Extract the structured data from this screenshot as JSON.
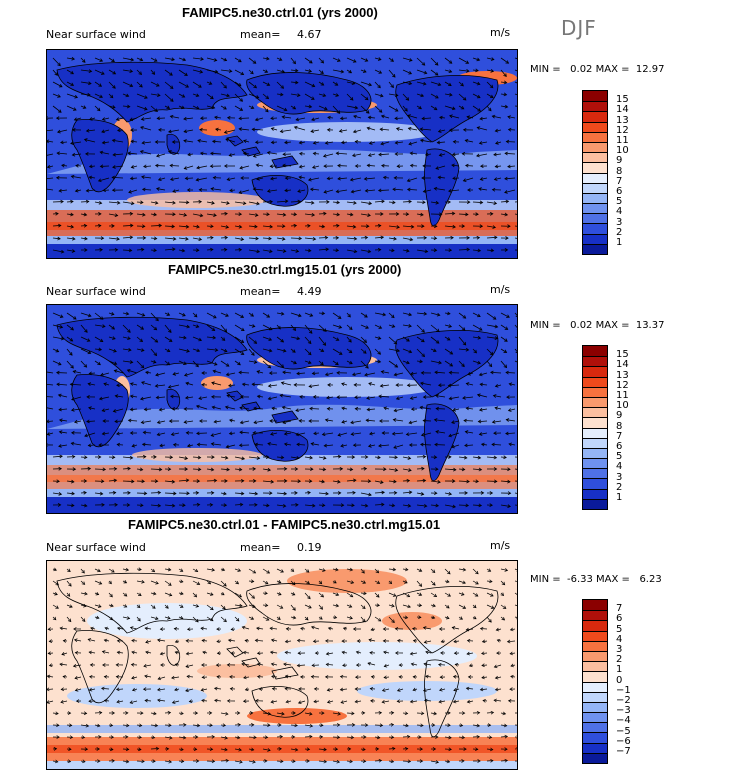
{
  "season": "DJF",
  "panels": [
    {
      "title": "FAMIPC5.ne30.ctrl.01 (yrs 2000)",
      "var_label": "Near surface wind",
      "mean_label": "mean=",
      "mean_value": "4.67",
      "units": "m/s",
      "minmax": "MIN =   0.02 MAX =  12.97",
      "colorbar": {
        "labels": [
          "15",
          "14",
          "13",
          "12",
          "11",
          "10",
          "9",
          "8",
          "7",
          "6",
          "5",
          "4",
          "3",
          "2",
          "1"
        ],
        "colors": [
          "#8b0000",
          "#b0100a",
          "#d8290e",
          "#ef4a1c",
          "#f7723f",
          "#f99a6e",
          "#fbbfa0",
          "#fde1cf",
          "#e4eefd",
          "#c0d6fb",
          "#94b5f6",
          "#6f92ef",
          "#4f71e6",
          "#2f4fdc",
          "#1730c6",
          "#0a1a9a"
        ]
      }
    },
    {
      "title": "FAMIPC5.ne30.ctrl.mg15.01 (yrs 2000)",
      "var_label": "Near surface wind",
      "mean_label": "mean=",
      "mean_value": "4.49",
      "units": "m/s",
      "minmax": "MIN =   0.02 MAX =  13.37",
      "colorbar": {
        "labels": [
          "15",
          "14",
          "13",
          "12",
          "11",
          "10",
          "9",
          "8",
          "7",
          "6",
          "5",
          "4",
          "3",
          "2",
          "1"
        ],
        "colors": [
          "#8b0000",
          "#b0100a",
          "#d8290e",
          "#ef4a1c",
          "#f7723f",
          "#f99a6e",
          "#fbbfa0",
          "#fde1cf",
          "#e4eefd",
          "#c0d6fb",
          "#94b5f6",
          "#6f92ef",
          "#4f71e6",
          "#2f4fdc",
          "#1730c6",
          "#0a1a9a"
        ]
      }
    },
    {
      "title": "FAMIPC5.ne30.ctrl.01 - FAMIPC5.ne30.ctrl.mg15.01",
      "var_label": "Near surface wind",
      "mean_label": "mean=",
      "mean_value": "0.19",
      "units": "m/s",
      "minmax": "MIN =  -6.33 MAX =   6.23",
      "colorbar": {
        "labels": [
          "7",
          "6",
          "5",
          "4",
          "3",
          "2",
          "1",
          "0",
          "−1",
          "−2",
          "−3",
          "−4",
          "−5",
          "−6",
          "−7"
        ],
        "colors": [
          "#8b0000",
          "#b0100a",
          "#d8290e",
          "#ef4a1c",
          "#f7723f",
          "#f99a6e",
          "#fbbfa0",
          "#fde1cf",
          "#e4eefd",
          "#c0d6fb",
          "#94b5f6",
          "#6f92ef",
          "#4f71e6",
          "#2f4fdc",
          "#1730c6",
          "#0a1a9a"
        ]
      }
    }
  ]
}
